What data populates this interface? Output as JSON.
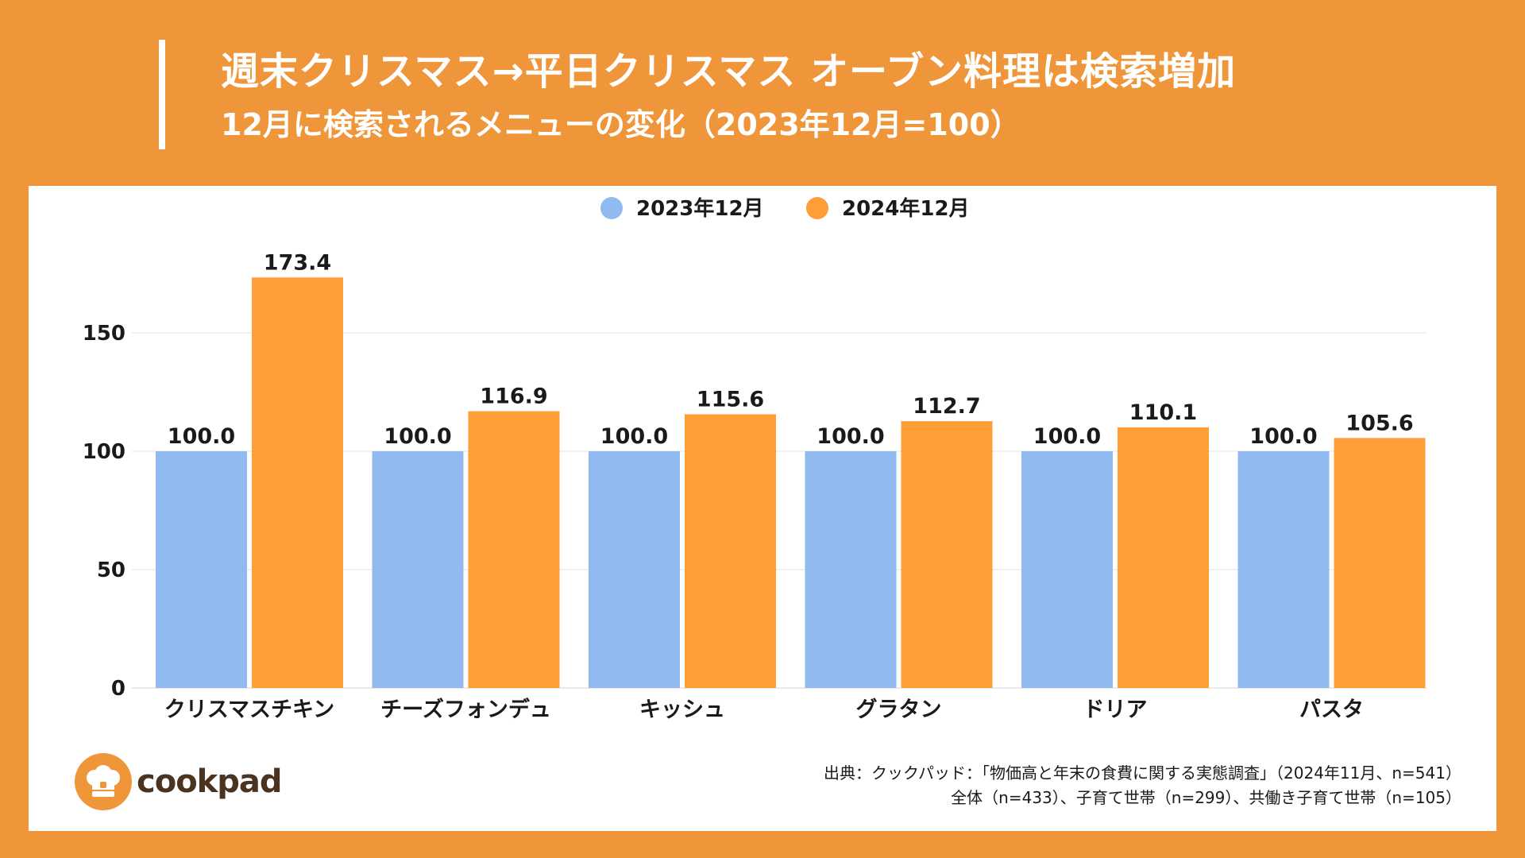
{
  "header": {
    "title": "週末クリスマス→平日クリスマス オーブン料理は検索増加",
    "subtitle": "12月に検索されるメニューの変化（2023年12月=100）"
  },
  "colors": {
    "background": "#F0963A",
    "series_2023": "#91BAF0",
    "series_2024": "#FF9D36"
  },
  "chart_data": {
    "type": "bar",
    "categories": [
      "クリスマスチキン",
      "チーズフォンデュ",
      "キッシュ",
      "グラタン",
      "ドリア",
      "パスタ"
    ],
    "series": [
      {
        "name": "2023年12月",
        "values": [
          100.0,
          100.0,
          100.0,
          100.0,
          100.0,
          100.0
        ]
      },
      {
        "name": "2024年12月",
        "values": [
          173.4,
          116.9,
          115.6,
          112.7,
          110.1,
          105.6
        ]
      }
    ],
    "value_labels": [
      [
        "100.0",
        "100.0",
        "100.0",
        "100.0",
        "100.0",
        "100.0"
      ],
      [
        "173.4",
        "116.9",
        "115.6",
        "112.7",
        "110.1",
        "105.6"
      ]
    ],
    "y_ticks": [
      0,
      50,
      100,
      150
    ],
    "ylim": [
      0,
      180
    ],
    "grid": true,
    "legend_position": "top-center"
  },
  "footer": {
    "logo_text": "cookpad",
    "source_line1": "出典：クックパッド：「物価高と年末の食費に関する実態調査」（2024年11月、n=541）",
    "source_line2": "全体（n=433）、子育て世帯（n=299）、共働き子育て世帯（n=105）"
  }
}
